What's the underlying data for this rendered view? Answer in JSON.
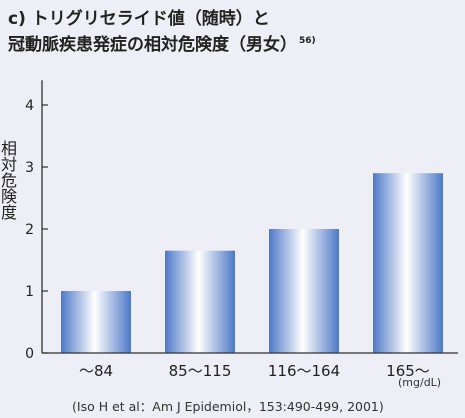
{
  "title_prefix": "c)",
  "title_line1": "トリグリセライド値（随時）と",
  "title_line2": "冠動脈疾患発症の相対危険度（男女）",
  "title_ref": "56)",
  "source": "(Iso H et al：Am J Epidemiol，153:490-499, 2001)",
  "chart_data": {
    "type": "bar",
    "categories": [
      "〜84",
      "85〜115",
      "116〜164",
      "165〜"
    ],
    "values": [
      1.0,
      1.65,
      2.0,
      2.9
    ],
    "ylabel": "相対危険度",
    "xlabel": "",
    "x_unit": "(mg/dL)",
    "yticks": [
      0,
      1,
      2,
      3,
      4
    ],
    "ylim": [
      0,
      4.4
    ],
    "grid": false,
    "colors": {
      "bar_center": "#ffffff",
      "bar_edge": "#4d78c8",
      "axis": "#333333"
    }
  }
}
